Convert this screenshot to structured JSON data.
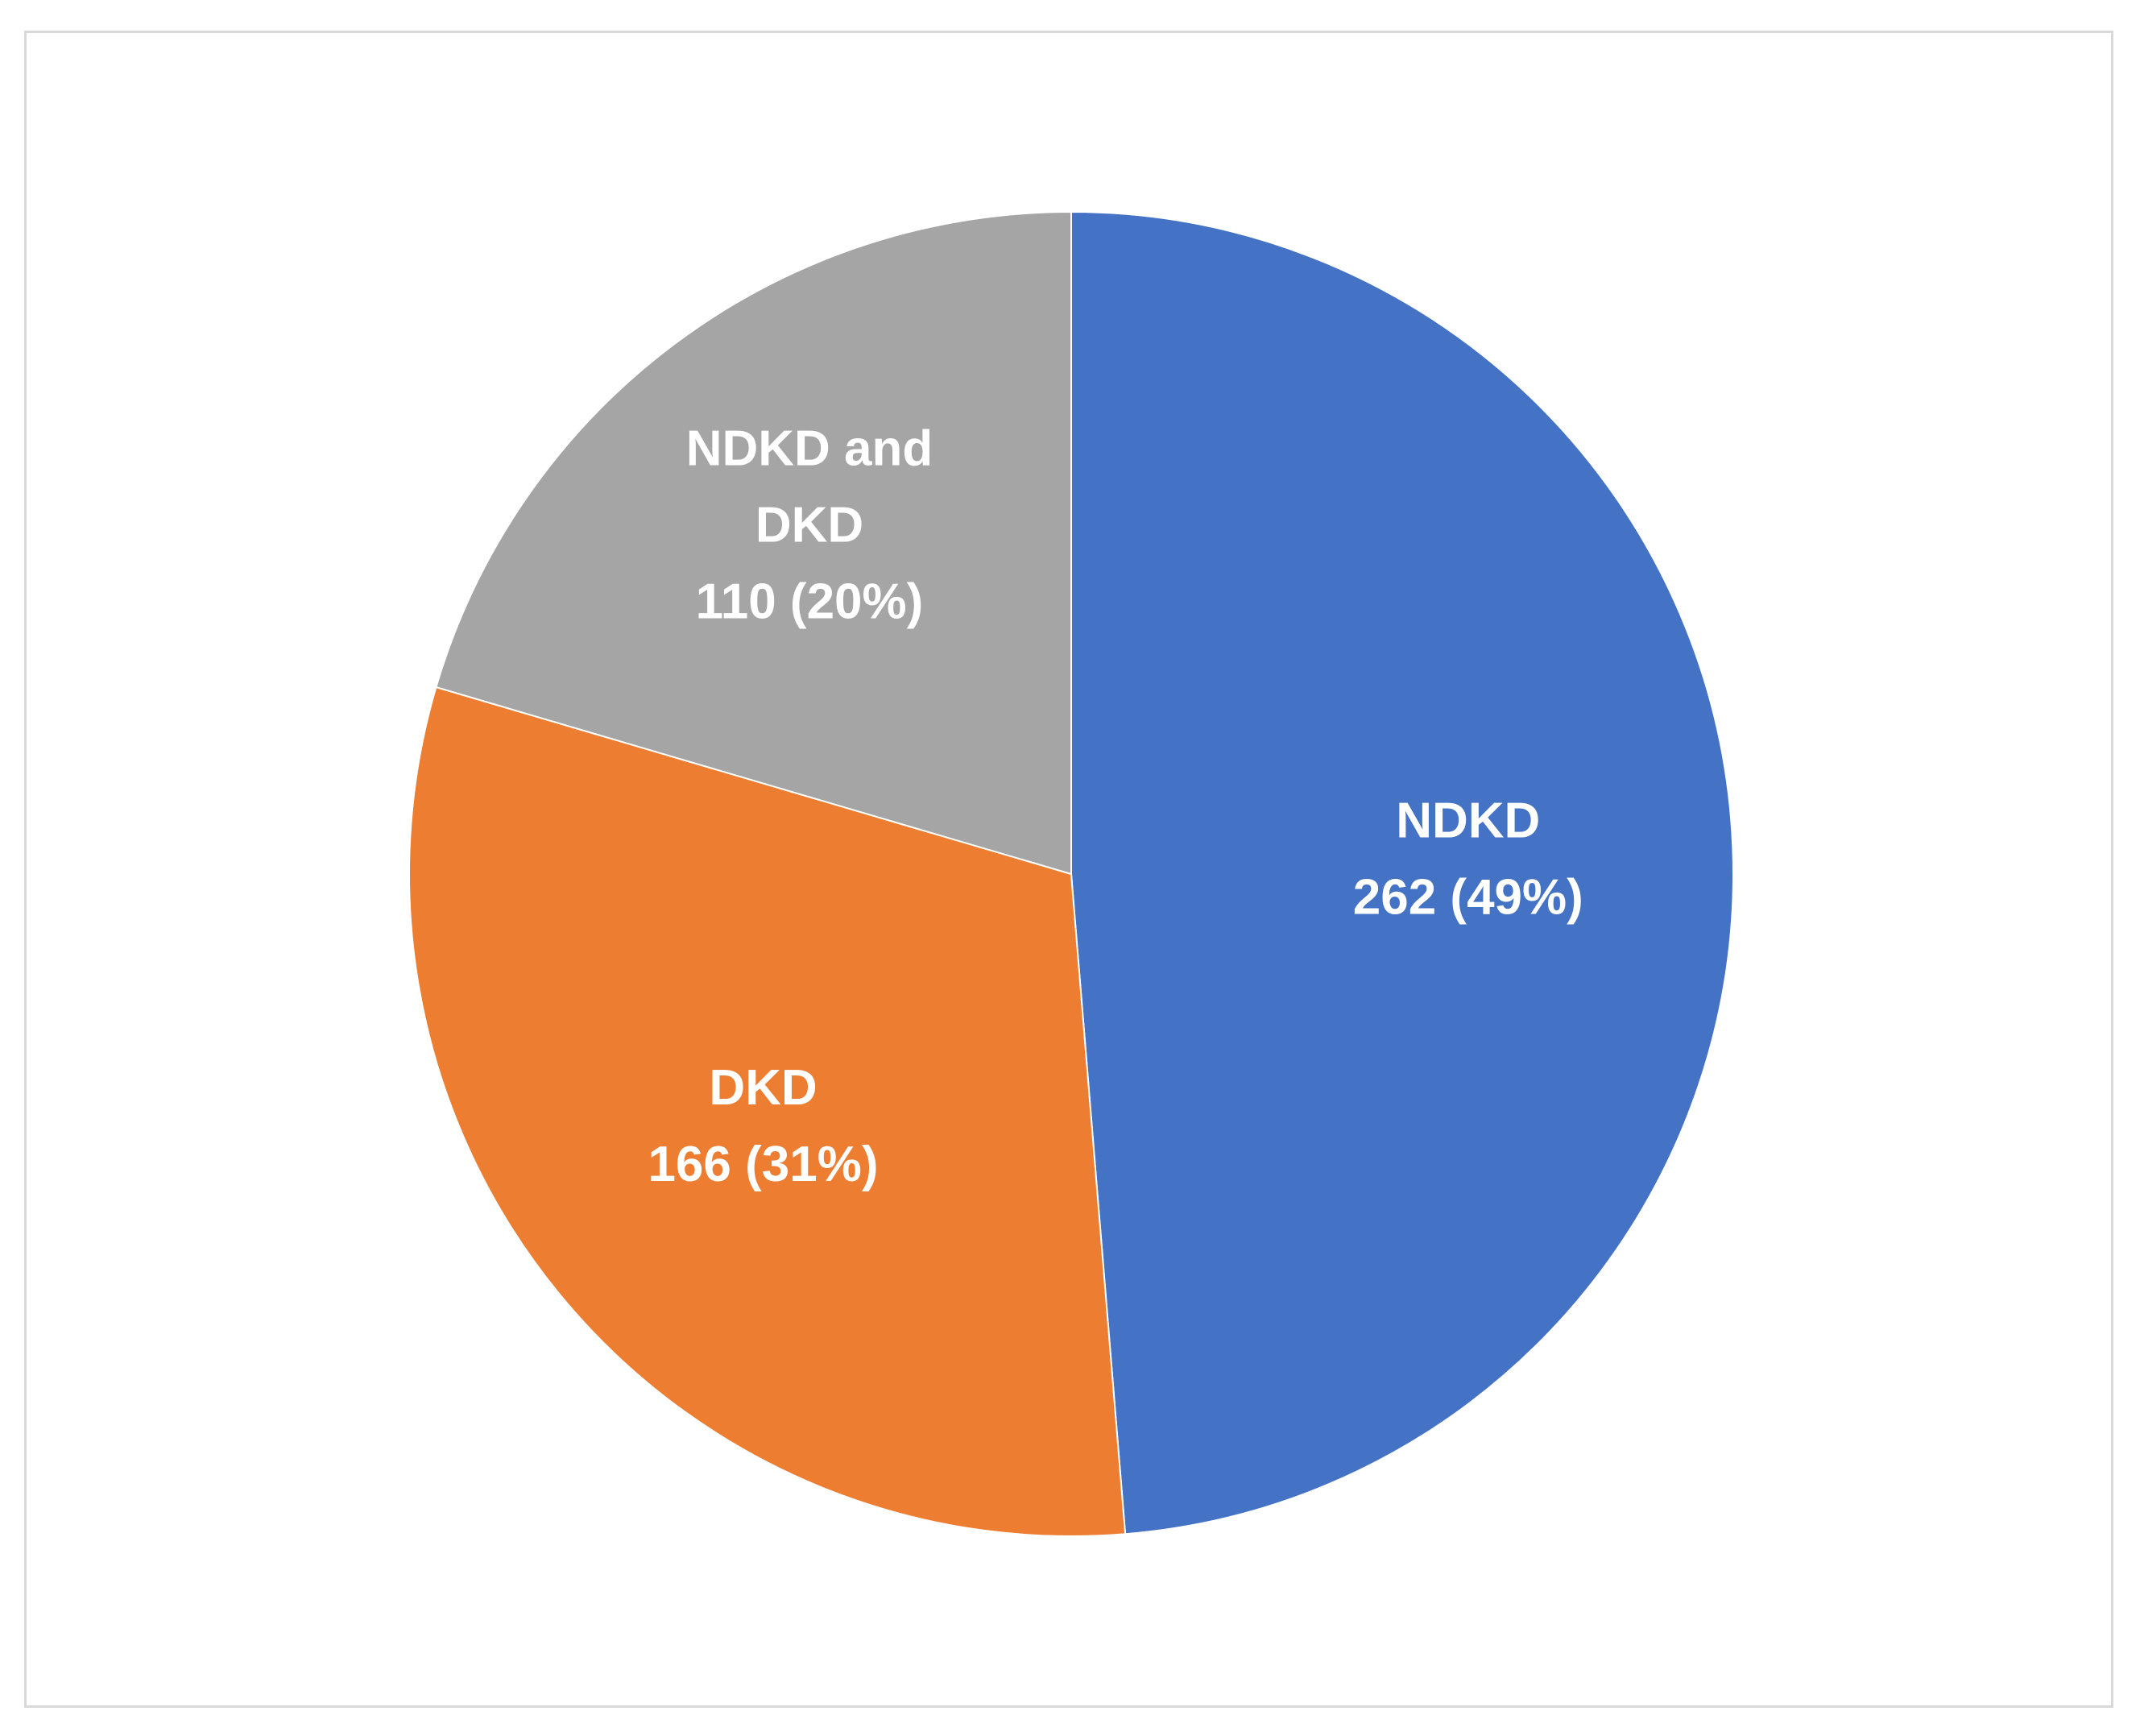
{
  "chart_data": {
    "type": "pie",
    "title": "",
    "slices": [
      {
        "name": "NDKD",
        "value": 262,
        "percent_label": "262 (49%)",
        "color": "#4472c4",
        "label_lines": [
          "NDKD",
          "262 (49%)"
        ]
      },
      {
        "name": "DKD",
        "value": 166,
        "percent_label": "166 (31%)",
        "color": "#ed7d31",
        "label_lines": [
          "DKD",
          "166 (31%)"
        ]
      },
      {
        "name": "NDKD and DKD",
        "value": 110,
        "percent_label": "110 (20%)",
        "color": "#a5a5a5",
        "label_lines": [
          "NDKD and",
          "DKD",
          "110 (20%)"
        ]
      }
    ],
    "start_angle_deg": 0,
    "direction": "clockwise",
    "legend": "none"
  }
}
